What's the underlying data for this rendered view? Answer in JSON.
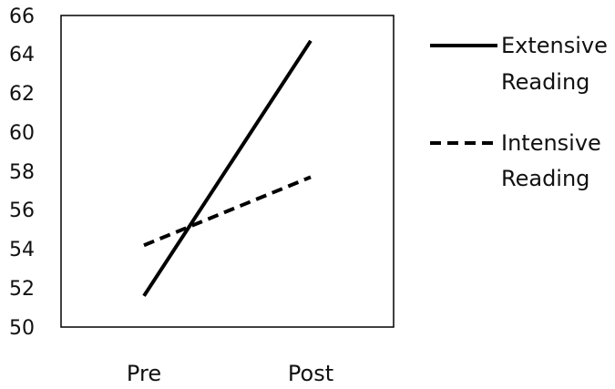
{
  "chart_data": {
    "type": "line",
    "title": "",
    "xlabel": "",
    "ylabel": "",
    "categories": [
      "Pre",
      "Post"
    ],
    "ylim": [
      50,
      66
    ],
    "yticks": [
      "50",
      "52",
      "54",
      "56",
      "58",
      "60",
      "62",
      "64",
      "66"
    ],
    "grid": false,
    "legend_position": "right",
    "series": [
      {
        "name_lines": [
          "Extensive",
          "Reading"
        ],
        "values": [
          51.6,
          64.7
        ],
        "line_style": "solid",
        "color": "#000000"
      },
      {
        "name_lines": [
          "Intensive",
          "Reading"
        ],
        "values": [
          54.2,
          57.7
        ],
        "line_style": "dashed",
        "color": "#000000"
      }
    ]
  }
}
